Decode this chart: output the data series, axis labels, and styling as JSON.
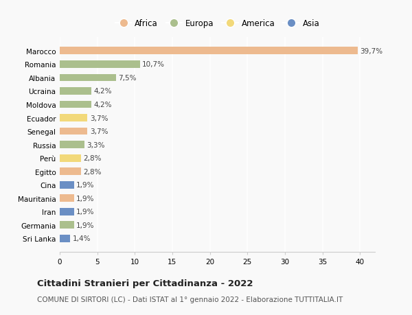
{
  "countries": [
    "Sri Lanka",
    "Germania",
    "Iran",
    "Mauritania",
    "Cina",
    "Egitto",
    "Perù",
    "Russia",
    "Senegal",
    "Ecuador",
    "Moldova",
    "Ucraina",
    "Albania",
    "Romania",
    "Marocco"
  ],
  "values": [
    1.4,
    1.9,
    1.9,
    1.9,
    1.9,
    2.8,
    2.8,
    3.3,
    3.7,
    3.7,
    4.2,
    4.2,
    7.5,
    10.7,
    39.7
  ],
  "continents": [
    "Asia",
    "Europa",
    "Asia",
    "Africa",
    "Asia",
    "Africa",
    "America",
    "Europa",
    "Africa",
    "America",
    "Europa",
    "Europa",
    "Europa",
    "Europa",
    "Africa"
  ],
  "colors": {
    "Africa": "#EDBA8F",
    "Europa": "#ABBF8D",
    "America": "#F2D97A",
    "Asia": "#6B8FC4"
  },
  "legend_order": [
    "Africa",
    "Europa",
    "America",
    "Asia"
  ],
  "title": "Cittadini Stranieri per Cittadinanza - 2022",
  "subtitle": "COMUNE DI SIRTORI (LC) - Dati ISTAT al 1° gennaio 2022 - Elaborazione TUTTITALIA.IT",
  "xlim": [
    0,
    42
  ],
  "xticks": [
    0,
    5,
    10,
    15,
    20,
    25,
    30,
    35,
    40
  ],
  "background_color": "#f9f9f9",
  "bar_height": 0.55,
  "label_fontsize": 7.5,
  "tick_fontsize": 7.5,
  "legend_fontsize": 8.5,
  "title_fontsize": 9.5,
  "subtitle_fontsize": 7.5
}
